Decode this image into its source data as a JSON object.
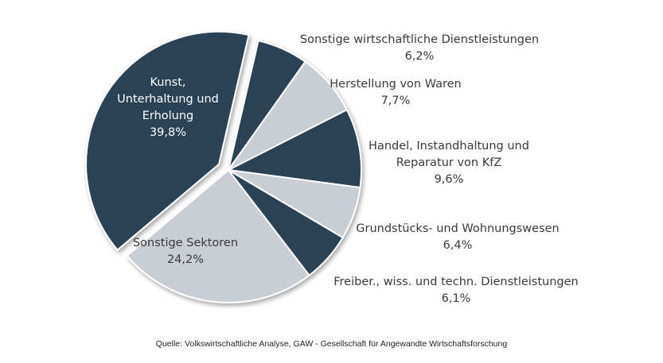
{
  "chart_data": {
    "type": "pie",
    "slices": [
      {
        "label": "Sonstige wirtschaftliche Dienstleistungen",
        "value": 6.2,
        "value_label": "6,2%",
        "color": "#2c4257"
      },
      {
        "label": "Herstellung von Waren",
        "value": 7.7,
        "value_label": "7,7%",
        "color": "#c9ced4"
      },
      {
        "label": "Handel, Instandhaltung und Reparatur von KfZ",
        "value": 9.6,
        "value_label": "9,6%",
        "color": "#2c4257"
      },
      {
        "label": "Grundstücks- und Wohnungswesen",
        "value": 6.4,
        "value_label": "6,4%",
        "color": "#c9ced4"
      },
      {
        "label": "Freiber., wiss. und techn. Dienstleistungen",
        "value": 6.1,
        "value_label": "6,1%",
        "color": "#2c4257"
      },
      {
        "label": "Sonstige Sektoren",
        "value": 24.2,
        "value_label": "24,2%",
        "color": "#c9ced4"
      },
      {
        "label": "Kunst, Unterhaltung und Erholung",
        "value": 39.8,
        "value_label": "39,8%",
        "color": "#2c4257",
        "exploded": true
      }
    ],
    "label_lines": [
      [
        "Sonstige wirtschaftliche Dienstleistungen",
        "6,2%"
      ],
      [
        "Herstellung von Waren",
        "7,7%"
      ],
      [
        "Handel, Instandhaltung und",
        "Reparatur von KfZ",
        "9,6%"
      ],
      [
        "Grundstücks- und Wohnungswesen",
        "6,4%"
      ],
      [
        "Freiber., wiss. und techn. Dienstleistungen",
        "6,1%"
      ],
      [
        "Sonstige Sektoren",
        "24,2%"
      ],
      [
        "Kunst,",
        "Unterhaltung und",
        "Erholung",
        "39,8%"
      ]
    ]
  },
  "source": "Quelle: Volkswirtschaftliche Analyse,  GAW - Gesellschaft für Angewandte Wirtschaftsforschung"
}
